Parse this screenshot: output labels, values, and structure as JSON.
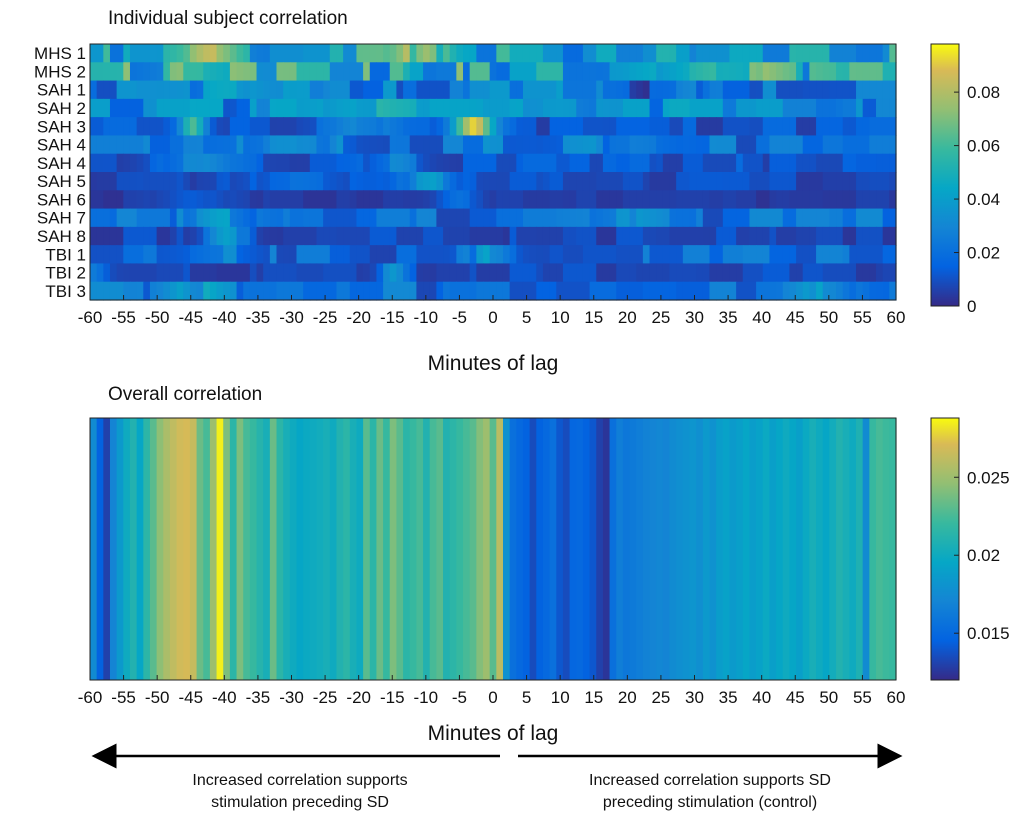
{
  "chart_data": [
    {
      "type": "heatmap",
      "title": "Individual subject correlation",
      "xlabel": "Minutes of lag",
      "ylabel": "",
      "x_ticks": [
        "-60",
        "-55",
        "-50",
        "-45",
        "-40",
        "-35",
        "-30",
        "-25",
        "-20",
        "-15",
        "-10",
        "-5",
        "0",
        "5",
        "10",
        "15",
        "20",
        "25",
        "30",
        "35",
        "40",
        "45",
        "50",
        "55",
        "60"
      ],
      "xlim": [
        -60,
        60
      ],
      "rows": [
        "MHS 1",
        "MHS 2",
        "SAH 1",
        "SAH 2",
        "SAH 3",
        "SAH 4",
        "SAH 4",
        "SAH 5",
        "SAH 6",
        "SAH 7",
        "SAH 8",
        "TBI 1",
        "TBI 2",
        "TBI 3"
      ],
      "colorbar": {
        "min": 0,
        "max": 0.098,
        "ticks": [
          "0",
          "0.02",
          "0.04",
          "0.06",
          "0.08"
        ],
        "tick_values": [
          0,
          0.02,
          0.04,
          0.06,
          0.08
        ]
      },
      "colormap": "parula",
      "cell_profiles": [
        {
          "base": 0.04,
          "bumps": [
            [
              -42,
              4,
              0.025
            ],
            [
              -10,
              3,
              0.05
            ]
          ]
        },
        {
          "base": 0.045,
          "bumps": [
            [
              -45,
              6,
              0.01
            ],
            [
              35,
              10,
              0.025
            ]
          ]
        },
        {
          "base": 0.025,
          "bumps": [
            [
              -40,
              5,
              0.01
            ],
            [
              25,
              5,
              -0.01
            ]
          ]
        },
        {
          "base": 0.03,
          "bumps": [
            [
              -20,
              5,
              0.008
            ],
            [
              10,
              5,
              0.005
            ]
          ]
        },
        {
          "base": 0.012,
          "bumps": [
            [
              -3,
              3,
              0.075
            ],
            [
              -45,
              2,
              0.05
            ],
            [
              -20,
              5,
              0.015
            ]
          ]
        },
        {
          "base": 0.022,
          "bumps": [
            [
              -30,
              8,
              0.008
            ],
            [
              20,
              8,
              0.008
            ]
          ]
        },
        {
          "base": 0.012,
          "bumps": [
            [
              -45,
              6,
              0.018
            ],
            [
              -15,
              4,
              0.015
            ]
          ]
        },
        {
          "base": 0.008,
          "bumps": [
            [
              -10,
              4,
              0.03
            ],
            [
              -30,
              8,
              0.01
            ]
          ]
        },
        {
          "base": 0.004,
          "bumps": [
            [
              -45,
              5,
              0.01
            ],
            [
              -5,
              3,
              0.015
            ]
          ]
        },
        {
          "base": 0.02,
          "bumps": [
            [
              -40,
              4,
              0.015
            ],
            [
              20,
              5,
              0.008
            ]
          ]
        },
        {
          "base": 0.008,
          "bumps": [
            [
              -40,
              3,
              0.03
            ]
          ]
        },
        {
          "base": 0.018,
          "bumps": [
            [
              0,
              3,
              0.018
            ],
            [
              -40,
              5,
              0.008
            ]
          ]
        },
        {
          "base": 0.008,
          "bumps": [
            [
              -15,
              2,
              0.025
            ],
            [
              -60,
              2,
              0.018
            ]
          ]
        },
        {
          "base": 0.02,
          "bumps": [
            [
              -45,
              4,
              0.02
            ],
            [
              50,
              4,
              0.02
            ]
          ]
        }
      ]
    },
    {
      "type": "heatmap",
      "title": "Overall correlation",
      "xlabel": "Minutes of lag",
      "ylabel": "",
      "x_ticks": [
        "-60",
        "-55",
        "-50",
        "-45",
        "-40",
        "-35",
        "-30",
        "-25",
        "-20",
        "-15",
        "-10",
        "-5",
        "0",
        "5",
        "10",
        "15",
        "20",
        "25",
        "30",
        "35",
        "40",
        "45",
        "50",
        "55",
        "60"
      ],
      "xlim": [
        -60,
        60
      ],
      "colorbar": {
        "min": 0.012,
        "max": 0.0288,
        "ticks": [
          "0.015",
          "0.02",
          "0.025"
        ],
        "tick_values": [
          0.015,
          0.02,
          0.025
        ]
      },
      "colormap": "parula",
      "lag_values": [
        {
          "x": -60,
          "v": 0.0175
        },
        {
          "x": -59,
          "v": 0.0145
        },
        {
          "x": -58,
          "v": 0.013
        },
        {
          "x": -57,
          "v": 0.017
        },
        {
          "x": -56,
          "v": 0.0185
        },
        {
          "x": -55,
          "v": 0.02
        },
        {
          "x": -54,
          "v": 0.021
        },
        {
          "x": -53,
          "v": 0.0195
        },
        {
          "x": -52,
          "v": 0.0215
        },
        {
          "x": -51,
          "v": 0.023
        },
        {
          "x": -50,
          "v": 0.0245
        },
        {
          "x": -49,
          "v": 0.0255
        },
        {
          "x": -48,
          "v": 0.0262
        },
        {
          "x": -47,
          "v": 0.0268
        },
        {
          "x": -46,
          "v": 0.027
        },
        {
          "x": -45,
          "v": 0.0264
        },
        {
          "x": -44,
          "v": 0.0235
        },
        {
          "x": -43,
          "v": 0.0225
        },
        {
          "x": -42,
          "v": 0.025
        },
        {
          "x": -41,
          "v": 0.0285
        },
        {
          "x": -40,
          "v": 0.024
        },
        {
          "x": -39,
          "v": 0.0215
        },
        {
          "x": -38,
          "v": 0.024
        },
        {
          "x": -37,
          "v": 0.0225
        },
        {
          "x": -36,
          "v": 0.022
        },
        {
          "x": -35,
          "v": 0.0212
        },
        {
          "x": -34,
          "v": 0.0205
        },
        {
          "x": -33,
          "v": 0.0235
        },
        {
          "x": -32,
          "v": 0.0215
        },
        {
          "x": -31,
          "v": 0.0205
        },
        {
          "x": -30,
          "v": 0.02
        },
        {
          "x": -29,
          "v": 0.0195
        },
        {
          "x": -28,
          "v": 0.0198
        },
        {
          "x": -27,
          "v": 0.02
        },
        {
          "x": -26,
          "v": 0.0202
        },
        {
          "x": -25,
          "v": 0.0205
        },
        {
          "x": -24,
          "v": 0.02
        },
        {
          "x": -23,
          "v": 0.021
        },
        {
          "x": -22,
          "v": 0.0215
        },
        {
          "x": -21,
          "v": 0.0205
        },
        {
          "x": -20,
          "v": 0.02
        },
        {
          "x": -19,
          "v": 0.023
        },
        {
          "x": -18,
          "v": 0.0215
        },
        {
          "x": -17,
          "v": 0.0235
        },
        {
          "x": -16,
          "v": 0.022
        },
        {
          "x": -15,
          "v": 0.024
        },
        {
          "x": -14,
          "v": 0.023
        },
        {
          "x": -13,
          "v": 0.0215
        },
        {
          "x": -12,
          "v": 0.022
        },
        {
          "x": -11,
          "v": 0.0225
        },
        {
          "x": -10,
          "v": 0.021
        },
        {
          "x": -9,
          "v": 0.0225
        },
        {
          "x": -8,
          "v": 0.023
        },
        {
          "x": -7,
          "v": 0.021
        },
        {
          "x": -6,
          "v": 0.0215
        },
        {
          "x": -5,
          "v": 0.022
        },
        {
          "x": -4,
          "v": 0.0225
        },
        {
          "x": -3,
          "v": 0.023
        },
        {
          "x": -2,
          "v": 0.0242
        },
        {
          "x": -1,
          "v": 0.025
        },
        {
          "x": 0,
          "v": 0.023
        },
        {
          "x": 1,
          "v": 0.026
        },
        {
          "x": 2,
          "v": 0.018
        },
        {
          "x": 3,
          "v": 0.0155
        },
        {
          "x": 4,
          "v": 0.015
        },
        {
          "x": 5,
          "v": 0.0145
        },
        {
          "x": 6,
          "v": 0.0135
        },
        {
          "x": 7,
          "v": 0.0145
        },
        {
          "x": 8,
          "v": 0.015
        },
        {
          "x": 9,
          "v": 0.0155
        },
        {
          "x": 10,
          "v": 0.014
        },
        {
          "x": 11,
          "v": 0.0135
        },
        {
          "x": 12,
          "v": 0.0148
        },
        {
          "x": 13,
          "v": 0.015
        },
        {
          "x": 14,
          "v": 0.0145
        },
        {
          "x": 15,
          "v": 0.014
        },
        {
          "x": 16,
          "v": 0.013
        },
        {
          "x": 17,
          "v": 0.0125
        },
        {
          "x": 18,
          "v": 0.0155
        },
        {
          "x": 19,
          "v": 0.0165
        },
        {
          "x": 20,
          "v": 0.016
        },
        {
          "x": 21,
          "v": 0.0162
        },
        {
          "x": 22,
          "v": 0.0165
        },
        {
          "x": 23,
          "v": 0.0168
        },
        {
          "x": 24,
          "v": 0.017
        },
        {
          "x": 25,
          "v": 0.0172
        },
        {
          "x": 26,
          "v": 0.017
        },
        {
          "x": 27,
          "v": 0.0175
        },
        {
          "x": 28,
          "v": 0.0178
        },
        {
          "x": 29,
          "v": 0.018
        },
        {
          "x": 30,
          "v": 0.0182
        },
        {
          "x": 31,
          "v": 0.0178
        },
        {
          "x": 32,
          "v": 0.0185
        },
        {
          "x": 33,
          "v": 0.018
        },
        {
          "x": 34,
          "v": 0.0188
        },
        {
          "x": 35,
          "v": 0.0192
        },
        {
          "x": 36,
          "v": 0.0186
        },
        {
          "x": 37,
          "v": 0.019
        },
        {
          "x": 38,
          "v": 0.0195
        },
        {
          "x": 39,
          "v": 0.0188
        },
        {
          "x": 40,
          "v": 0.0192
        },
        {
          "x": 41,
          "v": 0.0198
        },
        {
          "x": 42,
          "v": 0.019
        },
        {
          "x": 43,
          "v": 0.0195
        },
        {
          "x": 44,
          "v": 0.02
        },
        {
          "x": 45,
          "v": 0.0195
        },
        {
          "x": 46,
          "v": 0.019
        },
        {
          "x": 47,
          "v": 0.0198
        },
        {
          "x": 48,
          "v": 0.0205
        },
        {
          "x": 49,
          "v": 0.02
        },
        {
          "x": 50,
          "v": 0.0195
        },
        {
          "x": 51,
          "v": 0.0202
        },
        {
          "x": 52,
          "v": 0.021
        },
        {
          "x": 53,
          "v": 0.0205
        },
        {
          "x": 54,
          "v": 0.02
        },
        {
          "x": 55,
          "v": 0.0208
        },
        {
          "x": 56,
          "v": 0.0175
        },
        {
          "x": 57,
          "v": 0.022
        },
        {
          "x": 58,
          "v": 0.0225
        },
        {
          "x": 59,
          "v": 0.0222
        },
        {
          "x": 60,
          "v": 0.022
        }
      ]
    }
  ],
  "annotations": {
    "left_note": [
      "Increased correlation supports",
      "stimulation preceding SD"
    ],
    "right_note": [
      "Increased correlation supports SD",
      "preceding stimulation (control)"
    ]
  }
}
